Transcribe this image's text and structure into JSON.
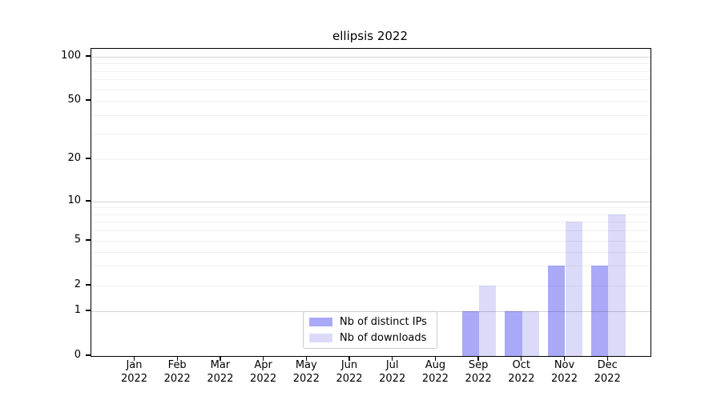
{
  "title": "ellipsis 2022",
  "chart_data": {
    "type": "bar",
    "title": "ellipsis 2022",
    "categories_month": [
      "Jan",
      "Feb",
      "Mar",
      "Apr",
      "May",
      "Jun",
      "Jul",
      "Aug",
      "Sep",
      "Oct",
      "Nov",
      "Dec"
    ],
    "categories_year": "2022",
    "series": [
      {
        "name": "Nb of distinct IPs",
        "color": "#a9a9f7",
        "values": [
          0,
          0,
          0,
          0,
          0,
          0,
          0,
          0,
          1,
          1,
          3,
          3
        ]
      },
      {
        "name": "Nb of downloads",
        "color": "#dbdbf9",
        "values": [
          0,
          0,
          0,
          0,
          0,
          0,
          0,
          0,
          2,
          1,
          7,
          8
        ]
      }
    ],
    "xlabel": "",
    "ylabel": "",
    "yscale": "log-like",
    "yticks": [
      0,
      1,
      2,
      5,
      10,
      20,
      50,
      100
    ],
    "ylim": [
      0,
      110
    ],
    "grid": {
      "major": [
        1,
        10,
        100
      ],
      "minor": [
        2,
        3,
        4,
        5,
        6,
        7,
        8,
        9,
        20,
        30,
        40,
        50,
        60,
        70,
        80,
        90
      ]
    },
    "legend": {
      "position": "lower-center",
      "entries": [
        "Nb of distinct IPs",
        "Nb of downloads"
      ]
    }
  }
}
